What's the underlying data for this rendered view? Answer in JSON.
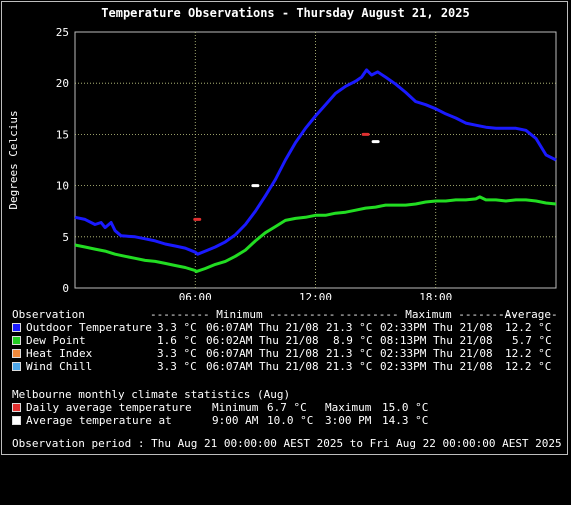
{
  "title": "Temperature Observations - Thursday August 21, 2025",
  "chart_data": {
    "type": "line",
    "ylabel": "Degrees Celcius",
    "ylim": [
      0,
      25
    ],
    "yticks": [
      "0",
      "5",
      "10",
      "15",
      "20",
      "25"
    ],
    "xlim": [
      0,
      24
    ],
    "xticks": [
      {
        "x": 6,
        "label": "06:00"
      },
      {
        "x": 12,
        "label": "12:00"
      },
      {
        "x": 18,
        "label": "18:00"
      }
    ],
    "grid": true,
    "colors": {
      "background": "#000000",
      "grid": "#c8d08a",
      "axis_text": "#ffffff"
    },
    "series": [
      {
        "name": "Outdoor Temperature",
        "color": "#1a1aff",
        "points": [
          [
            0,
            6.9
          ],
          [
            0.5,
            6.7
          ],
          [
            1,
            6.2
          ],
          [
            1.3,
            6.4
          ],
          [
            1.5,
            5.9
          ],
          [
            1.8,
            6.4
          ],
          [
            2,
            5.6
          ],
          [
            2.3,
            5.1
          ],
          [
            3,
            5
          ],
          [
            3.5,
            4.8
          ],
          [
            4,
            4.6
          ],
          [
            4.5,
            4.3
          ],
          [
            5,
            4.1
          ],
          [
            5.5,
            3.9
          ],
          [
            6,
            3.5
          ],
          [
            6.12,
            3.3
          ],
          [
            6.5,
            3.6
          ],
          [
            7,
            4
          ],
          [
            7.5,
            4.5
          ],
          [
            8,
            5.2
          ],
          [
            8.5,
            6.2
          ],
          [
            9,
            7.5
          ],
          [
            9.5,
            9
          ],
          [
            10,
            10.6
          ],
          [
            10.5,
            12.5
          ],
          [
            11,
            14.2
          ],
          [
            11.5,
            15.6
          ],
          [
            12,
            16.8
          ],
          [
            12.5,
            17.9
          ],
          [
            13,
            19
          ],
          [
            13.5,
            19.7
          ],
          [
            14,
            20.2
          ],
          [
            14.3,
            20.6
          ],
          [
            14.55,
            21.3
          ],
          [
            14.8,
            20.8
          ],
          [
            15.1,
            21.1
          ],
          [
            15.5,
            20.6
          ],
          [
            16,
            19.9
          ],
          [
            16.5,
            19.1
          ],
          [
            17,
            18.2
          ],
          [
            17.5,
            17.9
          ],
          [
            18,
            17.5
          ],
          [
            18.5,
            17
          ],
          [
            19,
            16.6
          ],
          [
            19.5,
            16.1
          ],
          [
            20,
            15.9
          ],
          [
            20.5,
            15.7
          ],
          [
            21,
            15.6
          ],
          [
            21.5,
            15.6
          ],
          [
            22,
            15.6
          ],
          [
            22.5,
            15.4
          ],
          [
            23,
            14.6
          ],
          [
            23.5,
            13
          ],
          [
            24,
            12.5
          ]
        ]
      },
      {
        "name": "Dew Point",
        "color": "#22dd22",
        "points": [
          [
            0,
            4.2
          ],
          [
            0.5,
            4
          ],
          [
            1,
            3.8
          ],
          [
            1.5,
            3.6
          ],
          [
            2,
            3.3
          ],
          [
            2.5,
            3.1
          ],
          [
            3,
            2.9
          ],
          [
            3.5,
            2.7
          ],
          [
            4,
            2.6
          ],
          [
            4.5,
            2.4
          ],
          [
            5,
            2.2
          ],
          [
            5.5,
            2
          ],
          [
            6,
            1.7
          ],
          [
            6.05,
            1.6
          ],
          [
            6.5,
            1.9
          ],
          [
            7,
            2.3
          ],
          [
            7.5,
            2.6
          ],
          [
            8,
            3.1
          ],
          [
            8.5,
            3.7
          ],
          [
            9,
            4.6
          ],
          [
            9.5,
            5.4
          ],
          [
            10,
            6
          ],
          [
            10.5,
            6.6
          ],
          [
            11,
            6.8
          ],
          [
            11.5,
            6.9
          ],
          [
            12,
            7.1
          ],
          [
            12.5,
            7.1
          ],
          [
            13,
            7.3
          ],
          [
            13.5,
            7.4
          ],
          [
            14,
            7.6
          ],
          [
            14.5,
            7.8
          ],
          [
            15,
            7.9
          ],
          [
            15.5,
            8.1
          ],
          [
            16,
            8.1
          ],
          [
            16.5,
            8.1
          ],
          [
            17,
            8.2
          ],
          [
            17.5,
            8.4
          ],
          [
            18,
            8.5
          ],
          [
            18.5,
            8.5
          ],
          [
            19,
            8.6
          ],
          [
            19.5,
            8.6
          ],
          [
            20,
            8.7
          ],
          [
            20.2,
            8.9
          ],
          [
            20.5,
            8.6
          ],
          [
            21,
            8.6
          ],
          [
            21.5,
            8.5
          ],
          [
            22,
            8.6
          ],
          [
            22.5,
            8.6
          ],
          [
            23,
            8.5
          ],
          [
            23.5,
            8.3
          ],
          [
            24,
            8.2
          ]
        ]
      }
    ],
    "markers": [
      {
        "name": "Daily average temperature",
        "color": "#e03030",
        "points": [
          [
            6.1,
            6.7
          ],
          [
            14.5,
            15.0
          ]
        ]
      },
      {
        "name": "Average temperature at",
        "color": "#ffffff",
        "points": [
          [
            9,
            10.0
          ],
          [
            15,
            14.3
          ]
        ]
      }
    ]
  },
  "legend": {
    "header": [
      "Observation",
      "--------- Minimum ----------",
      "--------- Maximum ----------",
      "-Average-"
    ],
    "rows": [
      {
        "color": "#1a1aff",
        "label": "Outdoor Temperature",
        "min_val": "3.3 °C",
        "min_time": "06:07AM Thu 21/08",
        "max_val": "21.3 °C",
        "max_time": "02:33PM Thu 21/08",
        "avg": "12.2 °C"
      },
      {
        "color": "#22cc22",
        "label": "Dew Point",
        "min_val": "1.6 °C",
        "min_time": "06:02AM Thu 21/08",
        "max_val": "8.9 °C",
        "max_time": "08:13PM Thu 21/08",
        "avg": "5.7 °C"
      },
      {
        "color": "#f08a3c",
        "label": "Heat Index",
        "min_val": "3.3 °C",
        "min_time": "06:07AM Thu 21/08",
        "max_val": "21.3 °C",
        "max_time": "02:33PM Thu 21/08",
        "avg": "12.2 °C"
      },
      {
        "color": "#4da6e8",
        "label": "Wind Chill",
        "min_val": "3.3 °C",
        "min_time": "06:07AM Thu 21/08",
        "max_val": "21.3 °C",
        "max_time": "02:33PM Thu 21/08",
        "avg": "12.2 °C"
      }
    ]
  },
  "climate": {
    "heading": "Melbourne monthly climate statistics (Aug)",
    "rows": [
      {
        "color": "#e03030",
        "label": "Daily average temperature",
        "a_label": "Minimum",
        "a_val": "6.7 °C",
        "b_label": "Maximum",
        "b_val": "15.0 °C"
      },
      {
        "color": "#ffffff",
        "label": "Average temperature at",
        "a_label": "9:00 AM",
        "a_val": "10.0 °C",
        "b_label": "3:00 PM",
        "b_val": "14.3 °C"
      }
    ]
  },
  "period": "Observation period : Thu Aug 21 00:00:00 AEST 2025 to Fri Aug 22 00:00:00 AEST 2025"
}
